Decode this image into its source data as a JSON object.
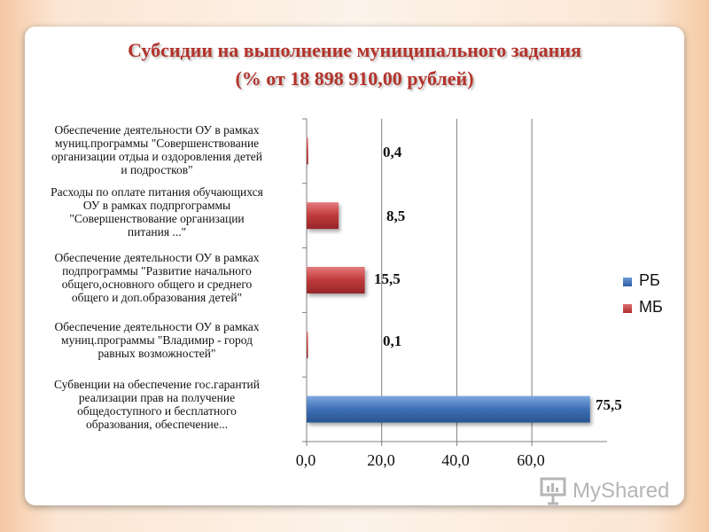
{
  "title": {
    "line1": "Субсидии на выполнение муниципального задания",
    "line2": "(% от 18 898 910,00 рублей)"
  },
  "chart_data": {
    "type": "bar",
    "orientation": "horizontal",
    "categories": [
      "Обеспечение деятельности ОУ в рамках муниц.программы \"Совершенствование организации отдыа и оздоровления детей и подростков\"",
      "Расходы по оплате питания обучающихся ОУ в рамках подпргограммы \"Совершенствование организации питания ...\"",
      "Обеспечение деятельности ОУ в рамках подпрограммы \"Развитие начального общего,основного общего и среднего общего и доп.образования детей\"",
      "Обеспечение деятельности ОУ в рамках муниц.программы \"Владимир - город равных возможностей\"",
      "Субвенции на обеспечение гос.гарантий реализации прав на получение общедоступного и бесплатного образования, обеспечение..."
    ],
    "category_lines": [
      [
        "Обеспечение деятельности ОУ в рамках",
        "муниц.программы \"Совершенствование",
        "организации отдыа и оздоровления детей",
        "и подростков\""
      ],
      [
        "Расходы по оплате питания обучающихся",
        "ОУ в рамках подпргограммы",
        "\"Совершенствование организации",
        "питания ...\""
      ],
      [
        "Обеспечение деятельности ОУ в рамках",
        "подпрограммы \"Развитие начального",
        "общего,основного общего и среднего",
        "общего и доп.образования детей\""
      ],
      [
        "Обеспечение деятельности ОУ в рамках",
        "муниц.программы \"Владимир - город",
        "равных возможностей\""
      ],
      [
        "Субвенции на обеспечение гос.гарантий",
        "реализации прав на получение",
        "общедоступного и бесплатного",
        "образования, обеспечение..."
      ]
    ],
    "series": [
      {
        "name": "РБ",
        "color": "#3d6fb6",
        "values": [
          0,
          0,
          0,
          0,
          75.5
        ]
      },
      {
        "name": "МБ",
        "color": "#c0393b",
        "values": [
          0.4,
          8.5,
          15.5,
          0.1,
          0
        ]
      }
    ],
    "data_labels": [
      "0,4",
      "8,5",
      "15,5",
      "0,1",
      "75,5"
    ],
    "xlim": [
      0,
      80
    ],
    "ticks": [
      0,
      20,
      40,
      60
    ],
    "tick_labels": [
      "0,0",
      "20,0",
      "40,0",
      "60,0"
    ],
    "grid": true,
    "legend_position": "right"
  },
  "watermark": {
    "text": "MyShared",
    "icon": "presentation-board-icon"
  }
}
